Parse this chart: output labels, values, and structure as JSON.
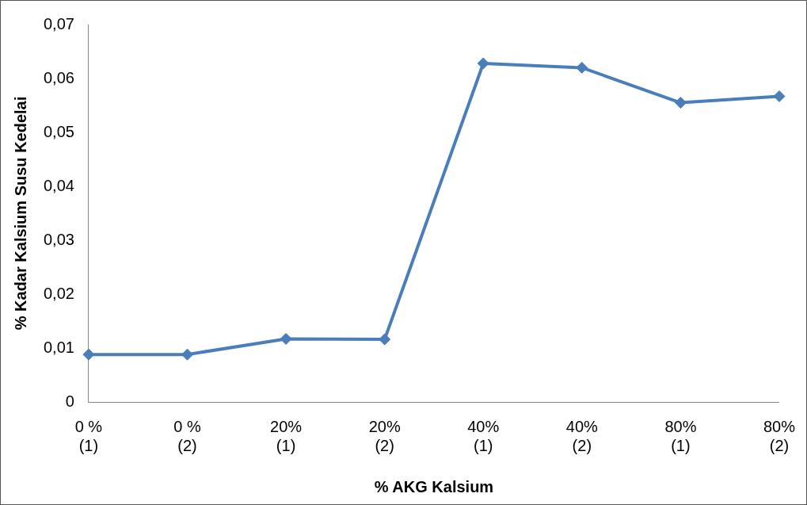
{
  "chart_data": {
    "type": "line",
    "xlabel": "% AKG Kalsium",
    "ylabel": "% Kadar Kalsium Susu Kedelai",
    "categories": [
      "0 %\n(1)",
      "0 %\n(2)",
      "20%\n(1)",
      "20%\n(2)",
      "40%\n(1)",
      "40%\n(2)",
      "80%\n(1)",
      "80%\n(2)"
    ],
    "series": [
      {
        "color": "#4a7ebb",
        "values": [
          0.0088,
          0.0088,
          0.0117,
          0.0116,
          0.0628,
          0.062,
          0.0555,
          0.0567
        ]
      }
    ],
    "ylim": [
      0,
      0.07
    ],
    "yticks": [
      {
        "value": 0,
        "label": "0"
      },
      {
        "value": 0.01,
        "label": "0,01"
      },
      {
        "value": 0.02,
        "label": "0,02"
      },
      {
        "value": 0.03,
        "label": "0,03"
      },
      {
        "value": 0.04,
        "label": "0,04"
      },
      {
        "value": 0.05,
        "label": "0,05"
      },
      {
        "value": 0.06,
        "label": "0,06"
      },
      {
        "value": 0.07,
        "label": "0,07"
      }
    ],
    "grid": false,
    "legend": false,
    "marker": "diamond",
    "line_style": "solid"
  }
}
